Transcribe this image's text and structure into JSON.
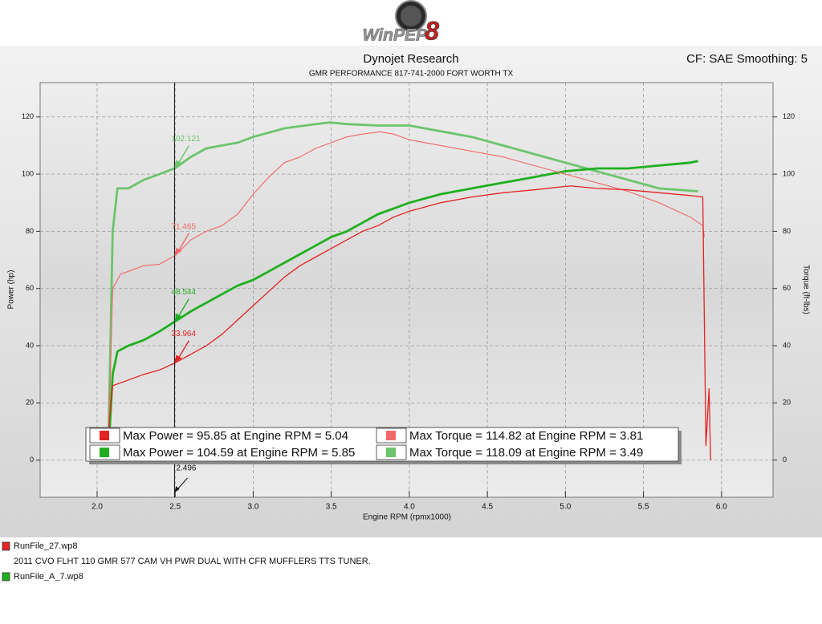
{
  "header": {
    "logo": "WinPEP",
    "logo_number": "8"
  },
  "chart_data": {
    "type": "line",
    "title": "Dynojet Research",
    "subtitle": "GMR PERFORMANCE 817-741-2000  FORT WORTH TX",
    "corner_note": "CF: SAE Smoothing: 5",
    "x_label": "Engine RPM (rpmx1000)",
    "y_label": "Power (hp)",
    "y2_label": "Torque (ft-lbs)",
    "xlim": [
      1.635,
      6.33
    ],
    "xticks": [
      {
        "value": 2,
        "label": "2.0"
      },
      2.5,
      {
        "value": 3,
        "label": "3.0"
      },
      3.5,
      {
        "value": 4,
        "label": "4.0"
      },
      4.5,
      {
        "value": 5,
        "label": "5.0"
      },
      5.5,
      {
        "value": 6,
        "label": "6.0"
      }
    ],
    "ylim": [
      -13,
      132
    ],
    "yticks": [
      0,
      20,
      40,
      60,
      80,
      100,
      120
    ],
    "y2lim": [
      -13,
      132
    ],
    "y2ticks": [
      0,
      20,
      40,
      60,
      80,
      100,
      120
    ],
    "grid": true,
    "cursor_x": 2.496,
    "series": [
      {
        "name": "Max Power = 95.85 at Engine RPM = 5.04",
        "color": "#e32222",
        "width": 1.3,
        "cursor_value": 33.964,
        "x": [
          2.07,
          2.08,
          2.1,
          2.2,
          2.3,
          2.4,
          2.5,
          2.6,
          2.7,
          2.8,
          2.9,
          3.0,
          3.1,
          3.2,
          3.3,
          3.4,
          3.5,
          3.6,
          3.7,
          3.8,
          3.9,
          4.0,
          4.2,
          4.4,
          4.6,
          4.8,
          5.0,
          5.04,
          5.2,
          5.4,
          5.6,
          5.8,
          5.88,
          5.9,
          5.92,
          5.93
        ],
        "values": [
          0,
          15,
          26,
          28,
          30,
          31.5,
          34,
          37,
          40,
          44,
          49,
          54,
          59,
          64,
          68,
          71,
          74,
          77,
          80,
          82,
          85,
          87,
          90,
          92,
          93.5,
          94.5,
          95.7,
          95.85,
          95,
          94.5,
          93.5,
          92.5,
          92,
          5,
          25,
          0
        ]
      },
      {
        "name": "Max Torque = 114.82 at Engine RPM = 3.81",
        "color": "#f06868",
        "width": 1.1,
        "axis": "y2",
        "cursor_value": 71.465,
        "x": [
          2.07,
          2.1,
          2.15,
          2.2,
          2.3,
          2.4,
          2.5,
          2.6,
          2.7,
          2.8,
          2.9,
          3.0,
          3.1,
          3.2,
          3.3,
          3.4,
          3.5,
          3.6,
          3.7,
          3.81,
          3.9,
          4.0,
          4.2,
          4.4,
          4.6,
          4.8,
          5.0,
          5.2,
          5.4,
          5.6,
          5.8,
          5.88,
          5.89
        ],
        "values": [
          0,
          60,
          65,
          66,
          68,
          68.5,
          71.5,
          77,
          80,
          82,
          86,
          93,
          99,
          104,
          106,
          109,
          111,
          113,
          114,
          114.82,
          114,
          112,
          110,
          108,
          106,
          103,
          100,
          97,
          94,
          90,
          85,
          82,
          78
        ]
      },
      {
        "name": "Max Power = 104.59 at Engine RPM = 5.85",
        "color": "#1fb01f",
        "width": 2.8,
        "cursor_value": 48.544,
        "x": [
          2.07,
          2.1,
          2.13,
          2.2,
          2.3,
          2.4,
          2.5,
          2.6,
          2.7,
          2.8,
          2.9,
          3.0,
          3.1,
          3.2,
          3.3,
          3.4,
          3.5,
          3.6,
          3.7,
          3.8,
          3.9,
          4.0,
          4.2,
          4.4,
          4.6,
          4.8,
          5.0,
          5.2,
          5.4,
          5.6,
          5.8,
          5.85
        ],
        "values": [
          0,
          30,
          38,
          40,
          42,
          45,
          48.5,
          52,
          55,
          58,
          61,
          63,
          66,
          69,
          72,
          75,
          78,
          80,
          83,
          86,
          88,
          90,
          93,
          95,
          97,
          99,
          101,
          102,
          102,
          103,
          104,
          104.59
        ]
      },
      {
        "name": "Max Torque = 118.09 at Engine RPM = 3.49",
        "color": "#6cc46c",
        "width": 2.8,
        "axis": "y2",
        "cursor_value": 102.121,
        "x": [
          2.07,
          2.1,
          2.13,
          2.2,
          2.3,
          2.4,
          2.5,
          2.6,
          2.7,
          2.8,
          2.9,
          3.0,
          3.2,
          3.4,
          3.49,
          3.6,
          3.8,
          4.0,
          4.2,
          4.4,
          4.6,
          4.8,
          5.0,
          5.2,
          5.4,
          5.6,
          5.85
        ],
        "values": [
          0,
          80,
          95,
          95,
          98,
          100,
          102.1,
          106,
          109,
          110,
          111,
          113,
          116,
          117.5,
          118.09,
          117.5,
          117,
          117,
          115,
          113,
          110,
          107,
          104,
          101,
          98,
          95,
          94
        ]
      }
    ]
  },
  "files": [
    {
      "name": "RunFile_27.wp8",
      "color": "#e32222",
      "note": "2011 CVO FLHT 110 GMR 577 CAM VH PWR DUAL WITH CFR MUFFLERS TTS TUNER."
    },
    {
      "name": "RunFile_A_7.wp8",
      "color": "#1fb01f"
    }
  ]
}
